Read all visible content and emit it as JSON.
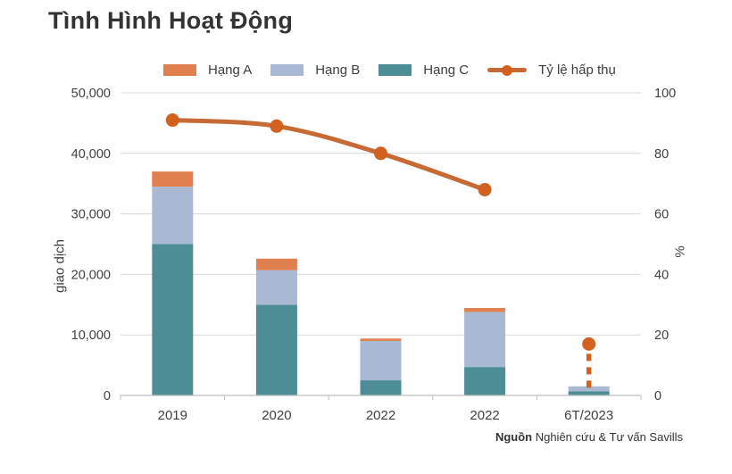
{
  "title": "Tình Hình Hoạt Động",
  "legend": {
    "items": [
      {
        "label": "Hạng A",
        "type": "swatch",
        "color": "#E0804E"
      },
      {
        "label": "Hạng B",
        "type": "swatch",
        "color": "#A9B9D3"
      },
      {
        "label": "Hạng C",
        "type": "swatch",
        "color": "#4D8E96"
      },
      {
        "label": "Tỷ lệ hấp thụ",
        "type": "line",
        "color": "#C86A35",
        "dot_color": "#D2601F"
      }
    ]
  },
  "chart_data": {
    "type": "bar",
    "subtype": "stacked-bar-with-line",
    "title": "Tình Hình Hoạt Động",
    "categories": [
      "2019",
      "2020",
      "2022",
      "2022",
      "6T/2023"
    ],
    "bar_series": [
      {
        "name": "Hạng A",
        "color": "#E0804E",
        "values": [
          2500,
          1900,
          400,
          650,
          0
        ]
      },
      {
        "name": "Hạng B",
        "color": "#A9B9D3",
        "values": [
          9500,
          5700,
          6500,
          9100,
          800
        ]
      },
      {
        "name": "Hạng C",
        "color": "#4D8E96",
        "values": [
          25000,
          15000,
          2500,
          4700,
          700
        ]
      }
    ],
    "stack_order_bottom_to_top": [
      "Hạng C",
      "Hạng B",
      "Hạng A"
    ],
    "line_series": {
      "name": "Tỷ lệ hấp thụ",
      "color": "#C86A35",
      "dot_color": "#D2601F",
      "values": [
        91,
        89,
        80,
        68,
        17
      ],
      "last_point_disconnected": true
    },
    "left_axis": {
      "title": "giao dịch",
      "ticks": [
        0,
        10000,
        20000,
        30000,
        40000,
        50000
      ],
      "max": 50000
    },
    "right_axis": {
      "title": "%",
      "ticks": [
        0,
        20,
        40,
        60,
        80,
        100
      ],
      "max": 100
    },
    "grid": "horizontal",
    "legend_position": "top",
    "source": {
      "bold": "Nguồn",
      "rest": " Nghiên cứu & Tư vấn Savills"
    }
  },
  "colors": {
    "grid": "#D9D9D9",
    "axis": "#BFBFBF",
    "tick_text": "#404040",
    "title_text": "#333333"
  }
}
